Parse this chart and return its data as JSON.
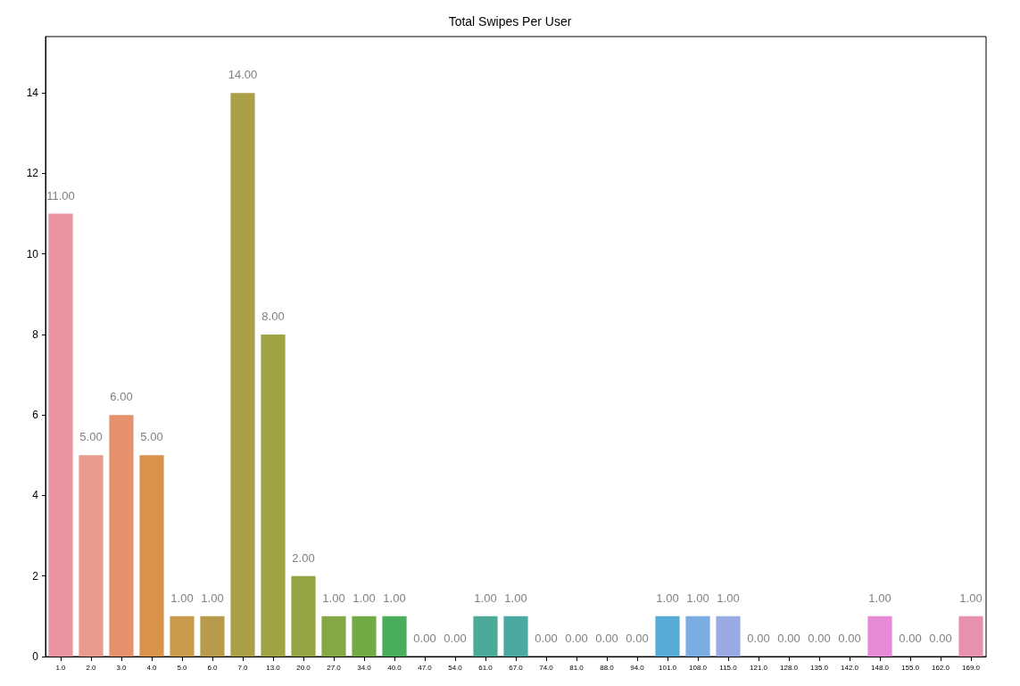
{
  "chart_data": {
    "type": "bar",
    "title": "Total Swipes Per User",
    "categories": [
      "1.0",
      "2.0",
      "3.0",
      "4.0",
      "5.0",
      "6.0",
      "7.0",
      "13.0",
      "20.0",
      "27.0",
      "34.0",
      "40.0",
      "47.0",
      "54.0",
      "61.0",
      "67.0",
      "74.0",
      "81.0",
      "88.0",
      "94.0",
      "101.0",
      "108.0",
      "115.0",
      "121.0",
      "128.0",
      "135.0",
      "142.0",
      "148.0",
      "155.0",
      "162.0",
      "169.0"
    ],
    "values": [
      11,
      5,
      6,
      5,
      1,
      1,
      14,
      8,
      2,
      1,
      1,
      1,
      0,
      0,
      1,
      1,
      0,
      0,
      0,
      0,
      1,
      1,
      1,
      0,
      0,
      0,
      0,
      1,
      0,
      0,
      1
    ],
    "value_labels": [
      "11.00",
      "5.00",
      "6.00",
      "5.00",
      "1.00",
      "1.00",
      "14.00",
      "8.00",
      "2.00",
      "1.00",
      "1.00",
      "1.00",
      "0.00",
      "0.00",
      "1.00",
      "1.00",
      "0.00",
      "0.00",
      "0.00",
      "0.00",
      "1.00",
      "1.00",
      "1.00",
      "0.00",
      "0.00",
      "0.00",
      "0.00",
      "1.00",
      "0.00",
      "0.00",
      "1.00"
    ],
    "colors": [
      "#e8939f",
      "#e89a8e",
      "#e5916d",
      "#d8924c",
      "#c99a4b",
      "#b99a4b",
      "#ab9f48",
      "#9ea343",
      "#94a442",
      "#86a746",
      "#72aa45",
      "#48ae5b",
      "#4aaf78",
      "#4aae8a",
      "#4bab98",
      "#4ca9a2",
      "#4ea8ad",
      "#50a7b8",
      "#52a8c5",
      "#54a9d2",
      "#57acd7",
      "#7aaee3",
      "#9aabe3",
      "#b1a5e4",
      "#c49fe3",
      "#d596e0",
      "#df90de",
      "#e68ad6",
      "#e78dc8",
      "#e88fb8",
      "#e891ac"
    ],
    "ylim": [
      0,
      15.4
    ],
    "yticks": [
      0,
      2,
      4,
      6,
      8,
      10,
      12,
      14
    ],
    "grid": false
  }
}
